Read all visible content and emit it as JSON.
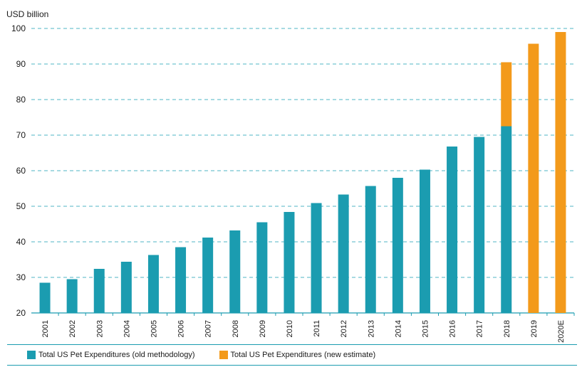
{
  "chart_data": {
    "type": "bar",
    "title": "",
    "ylabel": "USD billion",
    "xlabel": "",
    "ylim": [
      20,
      100
    ],
    "yticks": [
      20,
      30,
      40,
      50,
      60,
      70,
      80,
      90,
      100
    ],
    "grid": "horizontal dashed",
    "categories": [
      "2001",
      "2002",
      "2003",
      "2004",
      "2005",
      "2006",
      "2007",
      "2008",
      "2009",
      "2010",
      "2011",
      "2012",
      "2013",
      "2014",
      "2015",
      "2016",
      "2017",
      "2018",
      "2019",
      "2020E"
    ],
    "series": [
      {
        "name": "Total US Pet Expenditures (old methodology)",
        "color": "#1b9cb0",
        "values": [
          28.5,
          29.5,
          32.4,
          34.4,
          36.3,
          38.5,
          41.2,
          43.2,
          45.5,
          48.4,
          50.9,
          53.3,
          55.7,
          58.0,
          60.3,
          66.8,
          69.5,
          72.5,
          null,
          null
        ]
      },
      {
        "name": "Total US Pet Expenditures (new estimate)",
        "color": "#f39a1b",
        "values": [
          null,
          null,
          null,
          null,
          null,
          null,
          null,
          null,
          null,
          null,
          null,
          null,
          null,
          null,
          null,
          null,
          null,
          90.5,
          95.7,
          99.0
        ]
      }
    ],
    "legend_position": "bottom"
  }
}
